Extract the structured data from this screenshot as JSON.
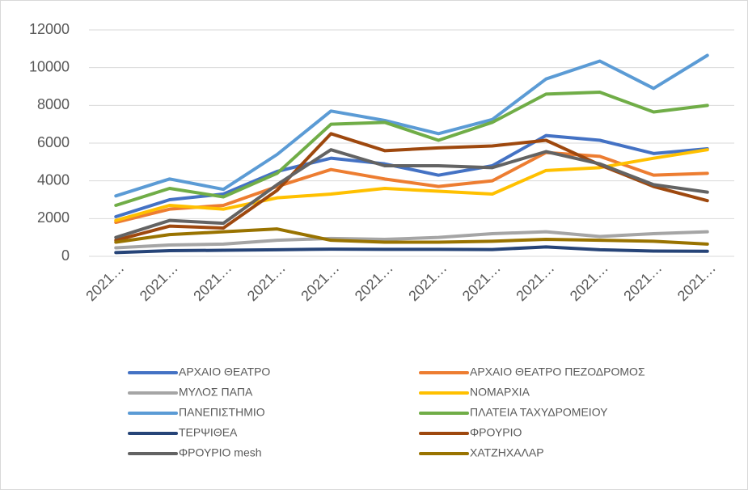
{
  "chart_data": {
    "type": "line",
    "categories": [
      "2021…",
      "2021…",
      "2021…",
      "2021…",
      "2021…",
      "2021…",
      "2021…",
      "2021…",
      "2021…",
      "2021…",
      "2021…",
      "2021…"
    ],
    "series": [
      {
        "name": "ΑΡΧΑΙΟ ΘΕΑΤΡΟ",
        "color": "#4472c4",
        "values": [
          2100,
          3000,
          3300,
          4500,
          5200,
          4900,
          4300,
          4800,
          6400,
          6150,
          5450,
          5700
        ]
      },
      {
        "name": "ΑΡΧΑΙΟ ΘΕΑΤΡΟ ΠΕΖΟΔΡΟΜΟΣ",
        "color": "#ed7d31",
        "values": [
          1800,
          2500,
          2700,
          3700,
          4600,
          4100,
          3700,
          4000,
          5500,
          5300,
          4300,
          4400
        ]
      },
      {
        "name": "ΜΥΛΟΣ ΠΑΠΑ",
        "color": "#a5a5a5",
        "values": [
          450,
          600,
          650,
          850,
          950,
          900,
          1000,
          1200,
          1300,
          1050,
          1200,
          1300
        ]
      },
      {
        "name": "ΝΟΜΑΡΧΙΑ",
        "color": "#ffc000",
        "values": [
          1900,
          2700,
          2500,
          3100,
          3300,
          3600,
          3450,
          3300,
          4550,
          4700,
          5200,
          5650
        ]
      },
      {
        "name": "ΠΑΝΕΠΙΣΤΗΜΙΟ",
        "color": "#5b9bd5",
        "values": [
          3200,
          4100,
          3550,
          5400,
          7700,
          7200,
          6500,
          7250,
          9400,
          10350,
          8900,
          10650
        ]
      },
      {
        "name": "ΠΛΑΤΕΙΑ ΤΑΧΥΔΡΟΜΕΙΟΥ",
        "color": "#70ad47",
        "values": [
          2700,
          3600,
          3150,
          4400,
          7000,
          7100,
          6150,
          7100,
          8600,
          8700,
          7650,
          8000
        ]
      },
      {
        "name": "ΤΕΡΨΙΘΕΑ",
        "color": "#264478",
        "values": [
          200,
          300,
          320,
          350,
          380,
          370,
          370,
          360,
          500,
          350,
          280,
          270
        ]
      },
      {
        "name": "ΦΡΟΥΡΙΟ",
        "color": "#9e480e",
        "values": [
          850,
          1600,
          1500,
          3500,
          6500,
          5600,
          5750,
          5850,
          6150,
          4850,
          3700,
          2950
        ]
      },
      {
        "name": "ΦΡΟΥΡΙΟ mesh",
        "color": "#636363",
        "values": [
          1000,
          1900,
          1750,
          3800,
          5650,
          4800,
          4800,
          4700,
          5550,
          4900,
          3800,
          3400
        ]
      },
      {
        "name": "ΧΑΤΖΗΧΑΛΑΡ",
        "color": "#997300",
        "values": [
          750,
          1150,
          1300,
          1450,
          850,
          750,
          750,
          800,
          900,
          850,
          800,
          650
        ]
      }
    ],
    "ylim": [
      0,
      12000
    ],
    "yticks": [
      0,
      2000,
      4000,
      6000,
      8000,
      10000,
      12000
    ],
    "grid": true,
    "legend": "bottom"
  }
}
